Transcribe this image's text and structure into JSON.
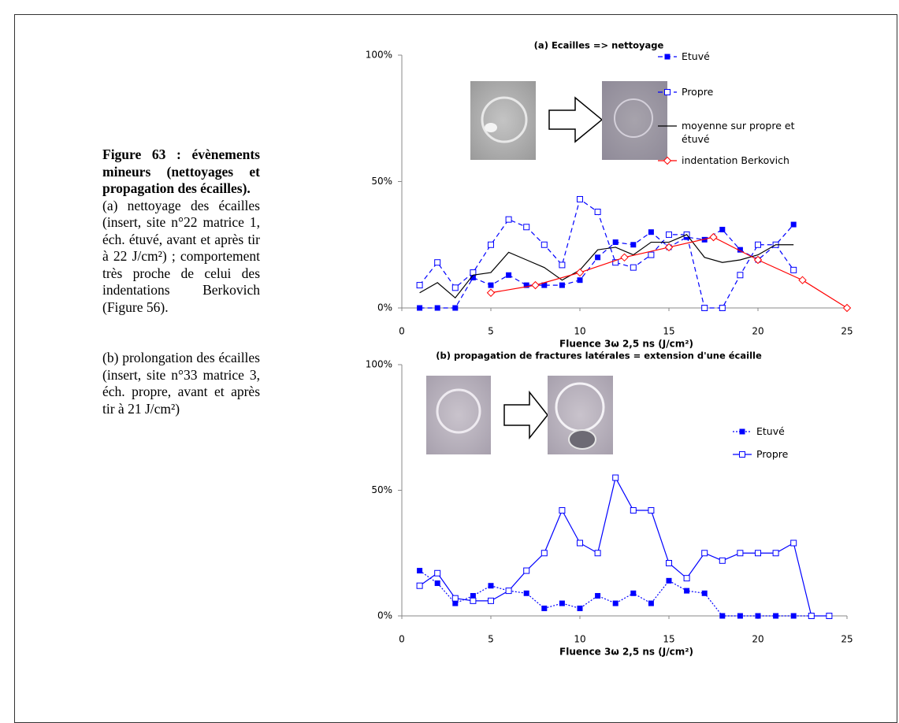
{
  "caption": {
    "title": "Figure 63 : évènements mineurs (nettoyages et propagation des écailles).",
    "paragraphs": [
      "(a) nettoyage des écailles (insert, site n°22 matrice 1, éch. étuvé, avant et après tir à 22 J/cm²) ; comportement très proche de celui des indentations Berkovich (Figure 56).",
      "(b) prolongation des écailles (insert, site n°33 matrice 3, éch. propre, avant et après tir à 21 J/cm²)"
    ]
  },
  "chart_data": [
    {
      "type": "line",
      "title": "(a) Ecailles => nettoyage",
      "x_label": "Fluence 3ω 2,5 ns (J/cm²)",
      "xlim": [
        0,
        25
      ],
      "xticks": [
        0,
        5,
        10,
        15,
        20,
        25
      ],
      "ylim": [
        0,
        100
      ],
      "yticks": [
        {
          "value": 0,
          "label": "0%"
        },
        {
          "value": 50,
          "label": "50%"
        },
        {
          "value": 100,
          "label": "100%"
        }
      ],
      "series": [
        {
          "name": "Etuvé",
          "color": "#0000ff",
          "dash": "dashed",
          "marker": "square-filled",
          "x": [
            1,
            2,
            3,
            4,
            5,
            6,
            7,
            8,
            9,
            10,
            11,
            12,
            13,
            14,
            15,
            16,
            17,
            18,
            19,
            20,
            21,
            22
          ],
          "values": [
            0,
            0,
            0,
            12,
            9,
            13,
            9,
            9,
            9,
            11,
            20,
            26,
            25,
            30,
            24,
            28,
            27,
            31,
            23,
            19,
            25,
            33
          ]
        },
        {
          "name": "Propre",
          "color": "#0000ff",
          "dash": "dashed",
          "marker": "square-open",
          "x": [
            1,
            2,
            3,
            4,
            5,
            6,
            7,
            8,
            9,
            10,
            11,
            12,
            13,
            14,
            15,
            16,
            17,
            18,
            19,
            20,
            21,
            22
          ],
          "values": [
            9,
            18,
            8,
            14,
            25,
            35,
            32,
            25,
            17,
            43,
            38,
            18,
            16,
            21,
            29,
            29,
            0,
            0,
            13,
            25,
            25,
            15
          ]
        },
        {
          "name": "moyenne sur propre et étuvé",
          "color": "#000000",
          "dash": "solid",
          "marker": "none",
          "x": [
            1,
            2,
            3,
            4,
            5,
            6,
            7,
            8,
            9,
            10,
            11,
            12,
            13,
            14,
            15,
            16,
            17,
            18,
            19,
            20,
            21,
            22
          ],
          "values": [
            6,
            10,
            4,
            13,
            14,
            22,
            19,
            16,
            11,
            15,
            23,
            24,
            21,
            26,
            26,
            29,
            20,
            18,
            19,
            21,
            25,
            25
          ]
        },
        {
          "name": "indentation Berkovich",
          "color": "#ff0000",
          "dash": "solid",
          "marker": "diamond-open",
          "x": [
            5,
            7.5,
            10,
            12.5,
            15,
            17.5,
            20,
            22.5,
            25
          ],
          "values": [
            6,
            9,
            14,
            20,
            24,
            28,
            19,
            11,
            0
          ]
        }
      ]
    },
    {
      "type": "line",
      "title": "(b) propagation de fractures latérales = extension d'une écaille",
      "x_label": "Fluence 3ω 2,5 ns (J/cm²)",
      "xlim": [
        0,
        25
      ],
      "xticks": [
        0,
        5,
        10,
        15,
        20,
        25
      ],
      "ylim": [
        0,
        100
      ],
      "yticks": [
        {
          "value": 0,
          "label": "0%"
        },
        {
          "value": 50,
          "label": "50%"
        },
        {
          "value": 100,
          "label": "100%"
        }
      ],
      "series": [
        {
          "name": "Etuvé",
          "color": "#0000ff",
          "dash": "dotted",
          "marker": "square-filled",
          "x": [
            1,
            2,
            3,
            4,
            5,
            6,
            7,
            8,
            9,
            10,
            11,
            12,
            13,
            14,
            15,
            16,
            17,
            18,
            19,
            20,
            21,
            22,
            23
          ],
          "values": [
            18,
            13,
            5,
            8,
            12,
            10,
            9,
            3,
            5,
            3,
            8,
            5,
            9,
            5,
            14,
            10,
            9,
            0,
            0,
            0,
            0,
            0,
            0
          ]
        },
        {
          "name": "Propre",
          "color": "#0000ff",
          "dash": "solid",
          "marker": "square-open",
          "x": [
            1,
            2,
            3,
            4,
            5,
            6,
            7,
            8,
            9,
            10,
            11,
            12,
            13,
            14,
            15,
            16,
            17,
            18,
            19,
            20,
            21,
            22,
            23,
            24
          ],
          "values": [
            12,
            17,
            7,
            6,
            6,
            10,
            18,
            25,
            42,
            29,
            25,
            55,
            42,
            42,
            21,
            15,
            25,
            22,
            25,
            25,
            25,
            29,
            0,
            0
          ]
        }
      ]
    }
  ]
}
